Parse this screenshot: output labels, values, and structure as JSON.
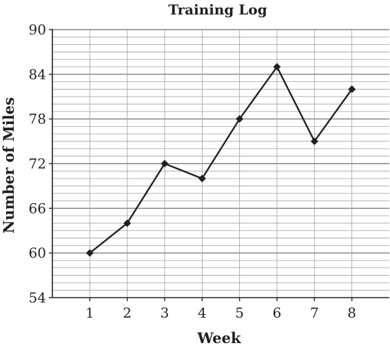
{
  "chart_data": {
    "type": "line",
    "title": "Training Log",
    "xlabel": "Week",
    "ylabel": "Number of Miles",
    "x": [
      1,
      2,
      3,
      4,
      5,
      6,
      7,
      8
    ],
    "xticks": [
      "1",
      "2",
      "3",
      "4",
      "5",
      "6",
      "7",
      "8"
    ],
    "yticks": [
      "54",
      "60",
      "66",
      "72",
      "78",
      "84",
      "90"
    ],
    "ylim": [
      54,
      90
    ],
    "xlim": [
      0,
      9
    ],
    "minor_grid_step": 1,
    "grid": true,
    "series": [
      {
        "values": [
          60,
          64,
          72,
          70,
          78,
          85,
          75,
          82
        ]
      }
    ],
    "colors": {
      "line": "#231f20",
      "grid": "#9d9fa2",
      "axis": "#231f20"
    }
  }
}
